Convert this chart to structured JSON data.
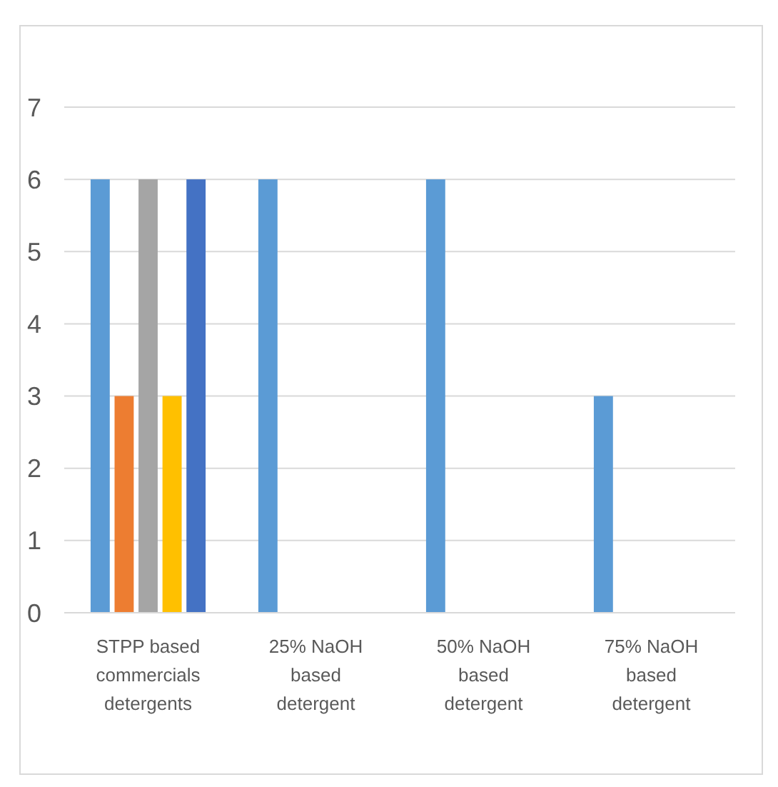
{
  "chart_data": {
    "type": "bar",
    "categories": [
      "STPP based commercials detergents",
      "25% NaOH based detergent",
      "50% NaOH based detergent",
      "75% NaOH based detergent"
    ],
    "series": [
      {
        "color": "#5b9bd5",
        "values": [
          6,
          6,
          6,
          3
        ]
      },
      {
        "color": "#ed7d31",
        "values": [
          3,
          0,
          0,
          0
        ]
      },
      {
        "color": "#a5a5a5",
        "values": [
          6,
          0,
          0,
          0
        ]
      },
      {
        "color": "#ffc000",
        "values": [
          3,
          0,
          0,
          0
        ]
      },
      {
        "color": "#4472c4",
        "values": [
          6,
          0,
          0,
          0
        ]
      }
    ],
    "ylim": [
      0,
      7
    ],
    "yticks": [
      0,
      1,
      2,
      3,
      4,
      5,
      6,
      7
    ],
    "grid": "y"
  }
}
